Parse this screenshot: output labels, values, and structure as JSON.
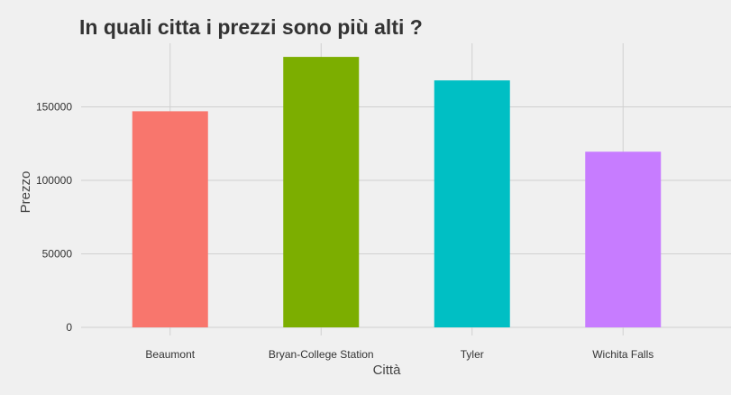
{
  "chart_data": {
    "type": "bar",
    "title": "In quali citta i prezzi sono più alti ?",
    "xlabel": "Città",
    "ylabel": "Prezzo",
    "categories": [
      "Beaumont",
      "Bryan-College Station",
      "Tyler",
      "Wichita Falls"
    ],
    "values": [
      147000,
      184000,
      168000,
      119500
    ],
    "colors": [
      "#F8766D",
      "#7CAE00",
      "#00BFC4",
      "#C77CFF"
    ],
    "ylim": [
      0,
      190000
    ],
    "yticks": [
      0,
      50000,
      100000,
      150000
    ],
    "ytick_labels": [
      "0",
      "50000",
      "100000",
      "150000"
    ],
    "grid": true,
    "legend": "none",
    "background": "#f0f0f0"
  }
}
